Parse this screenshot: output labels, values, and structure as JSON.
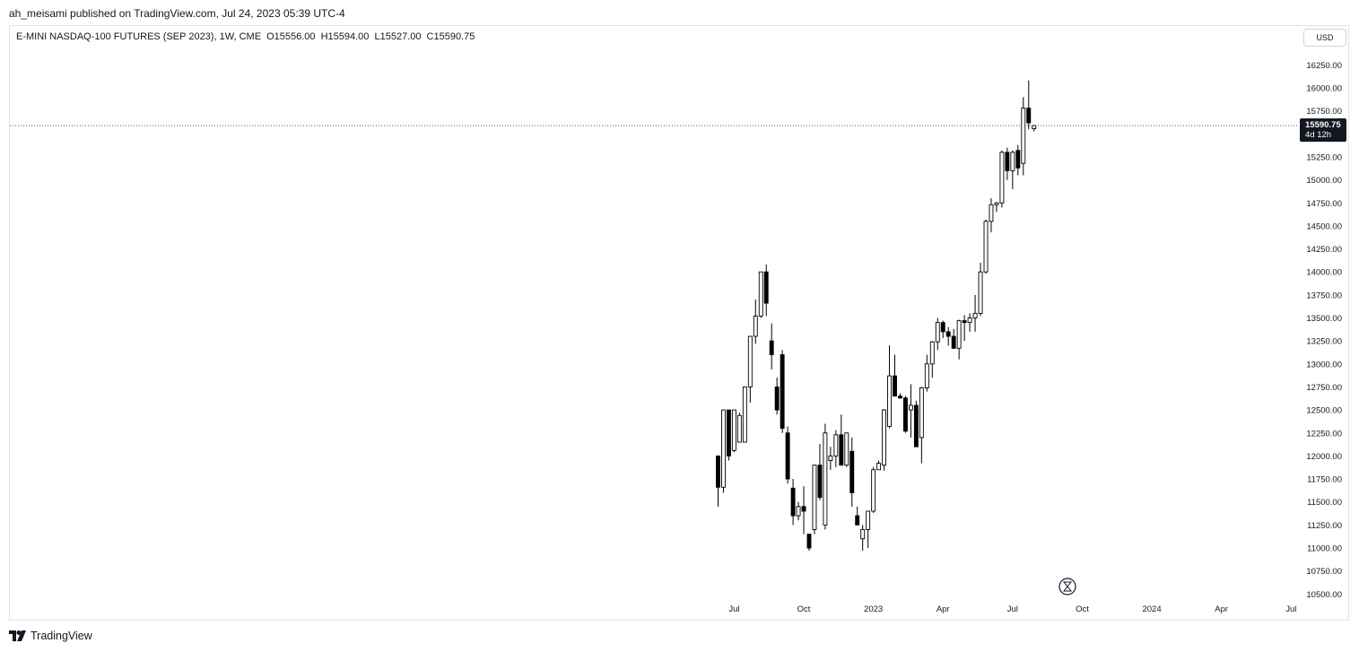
{
  "header": {
    "published": "ah_meisami published on TradingView.com, Jul 24, 2023 05:39 UTC-4"
  },
  "legend": {
    "symbol": "E-MINI NASDAQ-100 FUTURES (SEP 2023), 1W, CME",
    "open": "O15556.00",
    "high": "H15594.00",
    "low": "L15527.00",
    "close": "C15590.75"
  },
  "currency": "USD",
  "last_price": {
    "value": "15590.75",
    "countdown": "4d 12h"
  },
  "footer": {
    "brand": "TradingView"
  },
  "icons": [
    "time-replay-icon",
    "tradingview-logo-icon"
  ],
  "colors": {
    "bull_fill": "#ffffff",
    "bear_fill": "#000000",
    "wick": "#000000",
    "axis_text": "#131722"
  },
  "chart_data": {
    "type": "candlestick",
    "interval": "1W",
    "y_ticks": [
      10500,
      10750,
      11000,
      11250,
      11500,
      11750,
      12000,
      12250,
      12500,
      12750,
      13000,
      13250,
      13500,
      13750,
      14000,
      14250,
      14500,
      14750,
      15000,
      15250,
      15500,
      15750,
      16000,
      16250
    ],
    "y_tick_labels": [
      "10500.00",
      "10750.00",
      "11000.00",
      "11250.00",
      "11500.00",
      "11750.00",
      "12000.00",
      "12250.00",
      "12500.00",
      "12750.00",
      "13000.00",
      "13250.00",
      "13500.00",
      "13750.00",
      "14000.00",
      "14250.00",
      "14500.00",
      "14750.00",
      "15000.00",
      "15250.00",
      "15500.00",
      "15750.00",
      "16000.00",
      "16250.00"
    ],
    "ylim": [
      10450,
      16400
    ],
    "x_ticks": [
      {
        "label": "Jul",
        "index": 3
      },
      {
        "label": "Oct",
        "index": 16
      },
      {
        "label": "2023",
        "index": 29
      },
      {
        "label": "Apr",
        "index": 42
      },
      {
        "label": "Jul",
        "index": 55
      },
      {
        "label": "Oct",
        "index": 68
      },
      {
        "label": "2024",
        "index": 81
      },
      {
        "label": "Apr",
        "index": 94
      },
      {
        "label": "Jul",
        "index": 107
      }
    ],
    "last_price_line": 15590.75,
    "candles": [
      [
        12000,
        12000,
        11450,
        11660
      ],
      [
        11660,
        12500,
        11600,
        12500
      ],
      [
        12500,
        12500,
        11950,
        12000
      ],
      [
        12060,
        12500,
        12040,
        12500
      ],
      [
        12150,
        12470,
        12150,
        12440
      ],
      [
        12150,
        12750,
        12150,
        12750
      ],
      [
        12750,
        13300,
        12580,
        13300
      ],
      [
        13300,
        13700,
        13220,
        13520
      ],
      [
        13520,
        14000,
        13500,
        14000
      ],
      [
        14000,
        14080,
        13520,
        13660
      ],
      [
        13250,
        13440,
        12940,
        13100
      ],
      [
        12750,
        12850,
        12450,
        12500
      ],
      [
        13100,
        13150,
        12250,
        12300
      ],
      [
        12250,
        12320,
        11700,
        11750
      ],
      [
        11650,
        11750,
        11250,
        11350
      ],
      [
        11350,
        11500,
        11300,
        11450
      ],
      [
        11450,
        11670,
        11150,
        11400
      ],
      [
        11150,
        11150,
        10970,
        11000
      ],
      [
        11200,
        11900,
        11150,
        11900
      ],
      [
        11900,
        12130,
        11520,
        11550
      ],
      [
        11250,
        12350,
        11200,
        12250
      ],
      [
        11950,
        12100,
        11850,
        12000
      ],
      [
        12000,
        12280,
        11880,
        12230
      ],
      [
        12230,
        12450,
        11900,
        11900
      ],
      [
        11900,
        12250,
        11880,
        12250
      ],
      [
        12050,
        12200,
        11450,
        11600
      ],
      [
        11350,
        11450,
        11250,
        11250
      ],
      [
        11100,
        11250,
        10970,
        11200
      ],
      [
        11200,
        11400,
        11000,
        11400
      ],
      [
        11400,
        11880,
        11380,
        11850
      ],
      [
        11850,
        11950,
        11850,
        11920
      ],
      [
        11900,
        12510,
        11840,
        12500
      ],
      [
        12320,
        13200,
        12300,
        12870
      ],
      [
        12870,
        13100,
        12650,
        12650
      ],
      [
        12650,
        12680,
        12620,
        12630
      ],
      [
        12630,
        12650,
        12250,
        12270
      ],
      [
        12500,
        12780,
        12200,
        12550
      ],
      [
        12550,
        12600,
        12100,
        12100
      ],
      [
        12200,
        12750,
        11920,
        12740
      ],
      [
        12740,
        13100,
        12700,
        13000
      ],
      [
        13000,
        13250,
        12850,
        13240
      ],
      [
        13240,
        13500,
        13150,
        13450
      ],
      [
        13450,
        13470,
        13280,
        13350
      ],
      [
        13350,
        13400,
        13200,
        13300
      ],
      [
        13300,
        13380,
        13200,
        13170
      ],
      [
        13170,
        13480,
        13050,
        13470
      ],
      [
        13470,
        13530,
        13250,
        13450
      ],
      [
        13450,
        13550,
        13350,
        13500
      ],
      [
        13500,
        13750,
        13350,
        13550
      ],
      [
        13550,
        14100,
        13520,
        14000
      ],
      [
        14000,
        14570,
        13980,
        14550
      ],
      [
        14550,
        14800,
        14430,
        14730
      ],
      [
        14730,
        14760,
        14650,
        14750
      ],
      [
        14750,
        15320,
        14700,
        15300
      ],
      [
        15300,
        15350,
        15000,
        15100
      ],
      [
        15100,
        15320,
        14900,
        15300
      ],
      [
        15320,
        15380,
        15050,
        15130
      ],
      [
        15180,
        15900,
        15050,
        15780
      ],
      [
        15780,
        16080,
        15550,
        15620
      ],
      [
        15556,
        15594,
        15527,
        15590.75
      ]
    ],
    "grid": false,
    "legend_position": "top-left"
  }
}
